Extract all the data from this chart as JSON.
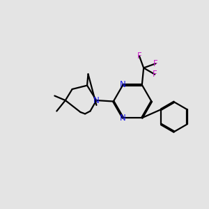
{
  "background_color": "#e4e4e4",
  "bond_color": "#000000",
  "n_color": "#1a1aee",
  "f_color": "#cc22cc",
  "line_width": 1.6,
  "dbo": 0.025,
  "fig_size": [
    3.0,
    3.0
  ],
  "dpi": 100,
  "xlim": [
    0,
    10
  ],
  "ylim": [
    0,
    10
  ]
}
